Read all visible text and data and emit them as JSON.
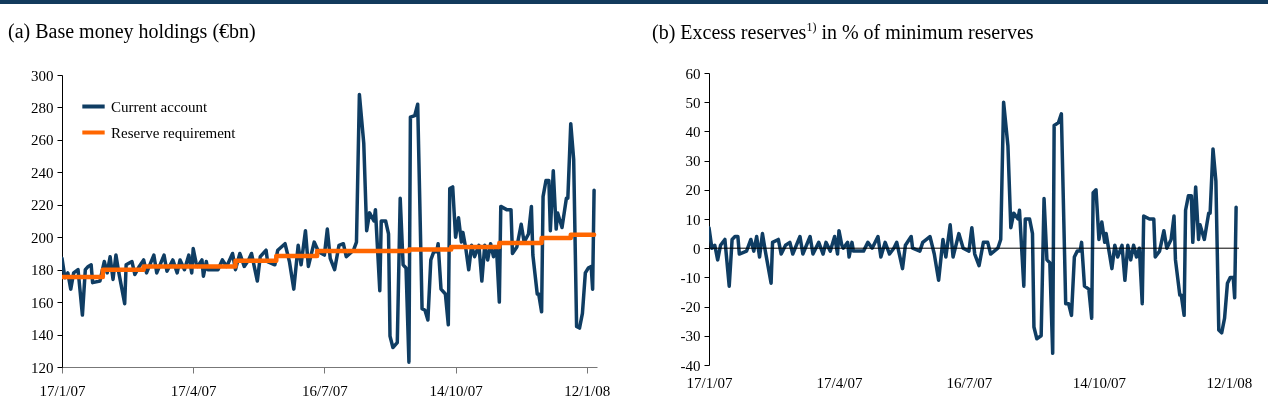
{
  "chart_data": [
    {
      "type": "line",
      "title": "(a) Base money holdings (€bn)",
      "legend": "top left",
      "grid": false,
      "xlim": [
        "2007-01-17",
        "2008-01-19"
      ],
      "ylim": [
        120,
        300
      ],
      "yticks": [
        120,
        140,
        160,
        180,
        200,
        220,
        240,
        260,
        280,
        300
      ],
      "xticks": [
        {
          "value": "2007-01-17",
          "label": "17/1/07"
        },
        {
          "value": "2007-04-17",
          "label": "17/4/07"
        },
        {
          "value": "2007-07-16",
          "label": "16/7/07"
        },
        {
          "value": "2007-10-14",
          "label": "14/10/07"
        },
        {
          "value": "2008-01-12",
          "label": "12/1/08"
        }
      ],
      "x": [
        "2007-01-17",
        "2007-01-19",
        "2007-01-21",
        "2007-01-23",
        "2007-01-25",
        "2007-01-28",
        "2007-01-31",
        "2007-02-02",
        "2007-02-04",
        "2007-02-06",
        "2007-02-07",
        "2007-02-12",
        "2007-02-15",
        "2007-02-17",
        "2007-02-19",
        "2007-02-21",
        "2007-02-23",
        "2007-02-25",
        "2007-03-01",
        "2007-03-02",
        "2007-03-06",
        "2007-03-08",
        "2007-03-11",
        "2007-03-14",
        "2007-03-16",
        "2007-03-21",
        "2007-03-23",
        "2007-03-28",
        "2007-03-30",
        "2007-04-03",
        "2007-04-06",
        "2007-04-08",
        "2007-04-11",
        "2007-04-14",
        "2007-04-16",
        "2007-04-17",
        "2007-04-19",
        "2007-04-20",
        "2007-04-23",
        "2007-04-24",
        "2007-04-26",
        "2007-04-27",
        "2007-05-04",
        "2007-05-07",
        "2007-05-10",
        "2007-05-14",
        "2007-05-16",
        "2007-05-19",
        "2007-05-22",
        "2007-05-25",
        "2007-05-27",
        "2007-05-31",
        "2007-06-02",
        "2007-06-06",
        "2007-06-07",
        "2007-06-12",
        "2007-06-14",
        "2007-06-19",
        "2007-06-22",
        "2007-06-25",
        "2007-06-28",
        "2007-06-30",
        "2007-07-03",
        "2007-07-05",
        "2007-07-09",
        "2007-07-12",
        "2007-07-16",
        "2007-07-18",
        "2007-07-20",
        "2007-07-23",
        "2007-07-26",
        "2007-07-29",
        "2007-07-31",
        "2007-08-05",
        "2007-08-07",
        "2007-08-09",
        "2007-08-12",
        "2007-08-14",
        "2007-08-16",
        "2007-08-19",
        "2007-08-20",
        "2007-08-23",
        "2007-08-24",
        "2007-08-27",
        "2007-08-29",
        "2007-08-30",
        "2007-09-01",
        "2007-09-04",
        "2007-09-06",
        "2007-09-08",
        "2007-09-10",
        "2007-09-12",
        "2007-09-13",
        "2007-09-16",
        "2007-09-18",
        "2007-09-21",
        "2007-09-23",
        "2007-09-25",
        "2007-09-27",
        "2007-09-29",
        "2007-10-01",
        "2007-10-02",
        "2007-10-04",
        "2007-10-07",
        "2007-10-09",
        "2007-10-10",
        "2007-10-12",
        "2007-10-14",
        "2007-10-16",
        "2007-10-18",
        "2007-10-19",
        "2007-10-21",
        "2007-10-23",
        "2007-10-25",
        "2007-10-27",
        "2007-10-30",
        "2007-11-01",
        "2007-11-03",
        "2007-11-05",
        "2007-11-07",
        "2007-11-09",
        "2007-11-11",
        "2007-11-13",
        "2007-11-14",
        "2007-11-18",
        "2007-11-21",
        "2007-11-22",
        "2007-11-25",
        "2007-11-28",
        "2007-11-30",
        "2007-12-03",
        "2007-12-05",
        "2007-12-06",
        "2007-12-09",
        "2007-12-10",
        "2007-12-12",
        "2007-12-13",
        "2007-12-15",
        "2007-12-17",
        "2007-12-18",
        "2007-12-20",
        "2007-12-22",
        "2007-12-23",
        "2007-12-26",
        "2007-12-29",
        "2007-12-30",
        "2008-01-01",
        "2008-01-03",
        "2008-01-05",
        "2008-01-07",
        "2008-01-09",
        "2008-01-11",
        "2008-01-13",
        "2008-01-15",
        "2008-01-16",
        "2008-01-17"
      ],
      "series": [
        {
          "name": "Current account",
          "color": "#0f3d63",
          "values": [
            187,
            175,
            178,
            168,
            178,
            180,
            152,
            180,
            182,
            183,
            172,
            173,
            185,
            178,
            188,
            174,
            189,
            178,
            159,
            183,
            185,
            177,
            182,
            186,
            178,
            189,
            178,
            189,
            179,
            186,
            178,
            186,
            180,
            189,
            178,
            193,
            184,
            182,
            186,
            176,
            185,
            180,
            180,
            186,
            182,
            190,
            180,
            190,
            182,
            186,
            190,
            173,
            188,
            192,
            185,
            183,
            192,
            196,
            185,
            168,
            195,
            183,
            204,
            182,
            197,
            191,
            189,
            205,
            187,
            180,
            195,
            196,
            188,
            192,
            197,
            288,
            258,
            204,
            215,
            210,
            217,
            167,
            210,
            210,
            202,
            139,
            132,
            135,
            224,
            183,
            181,
            123,
            274,
            275,
            282,
            156,
            155,
            149,
            186,
            191,
            191,
            196,
            168,
            165,
            146,
            230,
            231,
            200,
            212,
            197,
            203,
            193,
            180,
            195,
            188,
            195,
            173,
            195,
            186,
            196,
            188,
            194,
            160,
            219,
            217,
            217,
            190,
            194,
            208,
            197,
            202,
            219,
            189,
            165,
            165,
            154,
            225,
            235,
            235,
            204,
            241,
            205,
            215,
            206,
            224,
            224,
            270,
            248,
            145,
            144,
            153,
            178,
            181,
            182,
            168,
            229
          ]
        },
        {
          "name": "Reserve requirement",
          "color": "#ff6600",
          "type": "step",
          "x": [
            "2007-01-17",
            "2007-02-14",
            "2007-03-14",
            "2007-05-16",
            "2007-06-13",
            "2007-07-11",
            "2007-09-12",
            "2007-10-11",
            "2007-11-13",
            "2007-12-12",
            "2008-01-01",
            "2008-01-17"
          ],
          "values": [
            175.5,
            180,
            182,
            185.5,
            188.5,
            191.5,
            192.5,
            194,
            196.5,
            199.5,
            201.5,
            201.5
          ]
        }
      ]
    },
    {
      "type": "line",
      "title": "(b) Excess reserves$^{1)}$ in % of minimum reserves",
      "grid": false,
      "ref_lines": [
        {
          "axis": "y",
          "value": 0,
          "color": "#000000"
        }
      ],
      "xlim": [
        "2007-01-17",
        "2008-01-19"
      ],
      "ylim": [
        -40,
        60
      ],
      "yticks": [
        -40,
        -30,
        -20,
        -10,
        0,
        10,
        20,
        30,
        40,
        50,
        60
      ],
      "xticks": [
        {
          "value": "2007-01-17",
          "label": "17/1/07"
        },
        {
          "value": "2007-04-17",
          "label": "17/4/07"
        },
        {
          "value": "2007-07-16",
          "label": "16/7/07"
        },
        {
          "value": "2007-10-14",
          "label": "14/10/07"
        },
        {
          "value": "2008-01-12",
          "label": "12/1/08"
        }
      ],
      "x": [
        "2007-01-17",
        "2007-01-19",
        "2007-01-21",
        "2007-01-23",
        "2007-01-25",
        "2007-01-28",
        "2007-01-31",
        "2007-02-02",
        "2007-02-04",
        "2007-02-06",
        "2007-02-07",
        "2007-02-12",
        "2007-02-15",
        "2007-02-17",
        "2007-02-19",
        "2007-02-21",
        "2007-02-23",
        "2007-02-25",
        "2007-03-01",
        "2007-03-02",
        "2007-03-06",
        "2007-03-08",
        "2007-03-11",
        "2007-03-14",
        "2007-03-16",
        "2007-03-21",
        "2007-03-23",
        "2007-03-28",
        "2007-03-30",
        "2007-04-03",
        "2007-04-06",
        "2007-04-08",
        "2007-04-11",
        "2007-04-14",
        "2007-04-16",
        "2007-04-17",
        "2007-04-19",
        "2007-04-20",
        "2007-04-23",
        "2007-04-24",
        "2007-04-26",
        "2007-04-27",
        "2007-05-04",
        "2007-05-07",
        "2007-05-10",
        "2007-05-14",
        "2007-05-16",
        "2007-05-19",
        "2007-05-22",
        "2007-05-25",
        "2007-05-27",
        "2007-05-31",
        "2007-06-02",
        "2007-06-06",
        "2007-06-07",
        "2007-06-12",
        "2007-06-14",
        "2007-06-19",
        "2007-06-22",
        "2007-06-25",
        "2007-06-28",
        "2007-06-30",
        "2007-07-03",
        "2007-07-05",
        "2007-07-09",
        "2007-07-12",
        "2007-07-16",
        "2007-07-18",
        "2007-07-20",
        "2007-07-23",
        "2007-07-26",
        "2007-07-29",
        "2007-07-31",
        "2007-08-05",
        "2007-08-07",
        "2007-08-09",
        "2007-08-12",
        "2007-08-14",
        "2007-08-16",
        "2007-08-19",
        "2007-08-20",
        "2007-08-23",
        "2007-08-24",
        "2007-08-27",
        "2007-08-29",
        "2007-08-30",
        "2007-09-01",
        "2007-09-04",
        "2007-09-06",
        "2007-09-08",
        "2007-09-10",
        "2007-09-12",
        "2007-09-13",
        "2007-09-16",
        "2007-09-18",
        "2007-09-21",
        "2007-09-23",
        "2007-09-25",
        "2007-09-27",
        "2007-09-29",
        "2007-10-01",
        "2007-10-02",
        "2007-10-04",
        "2007-10-07",
        "2007-10-09",
        "2007-10-10",
        "2007-10-12",
        "2007-10-14",
        "2007-10-16",
        "2007-10-18",
        "2007-10-19",
        "2007-10-21",
        "2007-10-23",
        "2007-10-25",
        "2007-10-27",
        "2007-10-30",
        "2007-11-01",
        "2007-11-03",
        "2007-11-05",
        "2007-11-07",
        "2007-11-09",
        "2007-11-11",
        "2007-11-13",
        "2007-11-14",
        "2007-11-18",
        "2007-11-21",
        "2007-11-22",
        "2007-11-25",
        "2007-11-28",
        "2007-11-30",
        "2007-12-03",
        "2007-12-05",
        "2007-12-06",
        "2007-12-09",
        "2007-12-10",
        "2007-12-12",
        "2007-12-13",
        "2007-12-15",
        "2007-12-17",
        "2007-12-18",
        "2007-12-20",
        "2007-12-22",
        "2007-12-23",
        "2007-12-26",
        "2007-12-29",
        "2007-12-30",
        "2008-01-01",
        "2008-01-03",
        "2008-01-05",
        "2008-01-07",
        "2008-01-09",
        "2008-01-11",
        "2008-01-13",
        "2008-01-15",
        "2008-01-16",
        "2008-01-17"
      ],
      "series": [
        {
          "color": "#0f3d63",
          "values": [
            7,
            0,
            1,
            -4,
            1,
            3,
            -13,
            3,
            4,
            4,
            -2,
            -1,
            3,
            -1,
            4,
            -3,
            5,
            -1,
            -12,
            2,
            3,
            -2,
            1,
            2,
            -2,
            4,
            -2,
            4,
            -2,
            2,
            -2,
            2,
            -1,
            4,
            -2,
            6,
            1,
            0,
            2,
            -3,
            2,
            -1,
            -1,
            2,
            0,
            4,
            -3,
            2,
            -2,
            0,
            2,
            -7,
            1,
            4,
            0,
            -1,
            2,
            4,
            -2,
            -11,
            3,
            -3,
            8,
            -3,
            5,
            0,
            -1,
            7,
            -2,
            -6,
            2,
            2,
            -2,
            0,
            3,
            50,
            35,
            7,
            12,
            10,
            13,
            -13,
            10,
            10,
            5,
            -27,
            -31,
            -30,
            17,
            -4,
            -5,
            -36,
            42,
            43,
            46,
            -19,
            -19,
            -23,
            -3,
            -1,
            -1,
            2,
            -13,
            -14,
            -24,
            19,
            20,
            3,
            9,
            2,
            5,
            -1,
            -7,
            1,
            -3,
            1,
            -11,
            1,
            -4,
            1,
            -3,
            0,
            -19,
            11,
            10,
            10,
            -3,
            -1,
            6,
            0,
            3,
            11,
            -4,
            -16,
            -16,
            -23,
            13,
            18,
            18,
            2,
            21,
            3,
            8,
            3,
            12,
            12,
            34,
            23,
            -28,
            -29,
            -24,
            -12,
            -10,
            -10,
            -17,
            14
          ]
        }
      ]
    }
  ]
}
